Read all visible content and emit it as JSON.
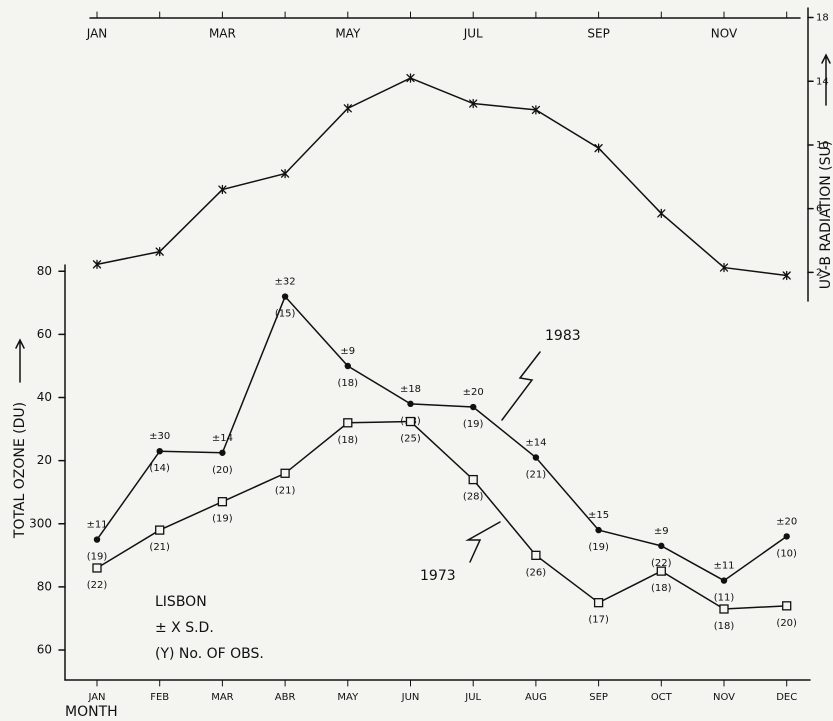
{
  "chart_data": {
    "type": "line",
    "categories": [
      "JAN",
      "FEB",
      "MAR",
      "ABR",
      "MAY",
      "JUN",
      "JUL",
      "AUG",
      "SEP",
      "OCT",
      "NOV",
      "DEC"
    ],
    "top_categories": [
      "JAN",
      "MAR",
      "MAY",
      "JUL",
      "SEP",
      "NOV"
    ],
    "xlabel": "MONTH",
    "ylabel": "TOTAL OZONE (DU)",
    "y2label": "UV-B RADIATION (SU)",
    "ylim": [
      250.5,
      382
    ],
    "yticks": [
      {
        "value": 380,
        "label": "80"
      },
      {
        "value": 360,
        "label": "60"
      },
      {
        "value": 340,
        "label": "40"
      },
      {
        "value": 320,
        "label": "20"
      },
      300,
      {
        "value": 280,
        "label": "80"
      },
      {
        "value": 260,
        "label": "60"
      }
    ],
    "y2lim": [
      0.2,
      18.6
    ],
    "y2ticks": [
      2,
      6,
      10,
      14,
      18
    ],
    "series": [
      {
        "name": "1983",
        "color": "#111111",
        "marker": "circle",
        "values": [
          295,
          323,
          322.5,
          372,
          350,
          338,
          337,
          321,
          298,
          293,
          282,
          296
        ],
        "sd_labels": [
          "±11",
          "±30",
          "±14",
          "±32",
          "±9",
          "±18",
          "±20",
          "±14",
          "±15",
          "±9",
          "±11",
          "±20"
        ],
        "obs_labels": [
          "(19)",
          "(14)",
          "(20)",
          "(15)",
          "(18)",
          "(18)",
          "(19)",
          "(21)",
          "(19)",
          "(22)",
          "(11)",
          "(10)"
        ]
      },
      {
        "name": "1973",
        "color": "#111111",
        "marker": "square",
        "values": [
          286,
          298,
          307,
          316,
          332,
          332.4,
          314,
          290,
          275,
          285,
          273,
          274
        ],
        "obs_labels": [
          "(22)",
          "(21)",
          "(19)",
          "(21)",
          "(18)",
          "(25)",
          "(28)",
          "(26)",
          "(17)",
          "(18)",
          "(18)",
          "(20)"
        ]
      },
      {
        "color": "#111111",
        "marker": "star",
        "axis": "y2",
        "values": [
          2.5,
          3.3,
          7.2,
          8.2,
          12.3,
          14.2,
          12.6,
          12.2,
          9.8,
          5.7,
          2.3,
          1.8
        ]
      }
    ],
    "annotations": [
      "LISBON",
      "± X S.D.",
      "(Y) No. OF OBS."
    ]
  }
}
